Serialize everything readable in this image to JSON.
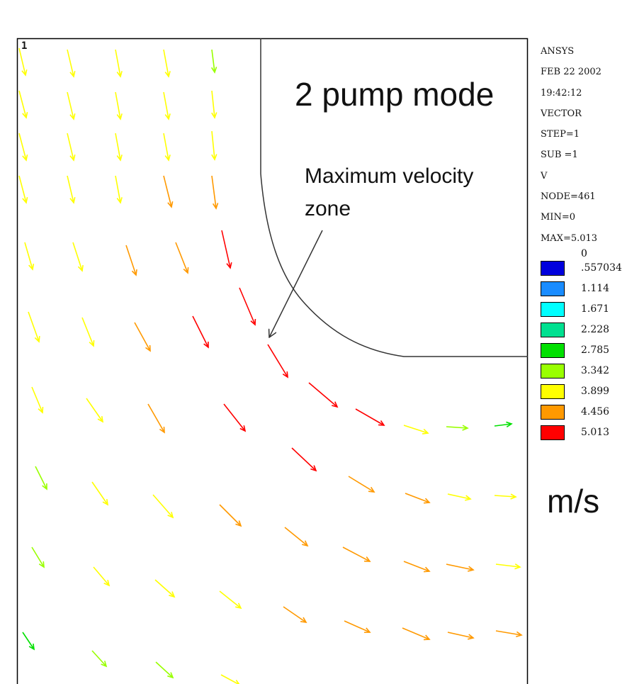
{
  "plot": {
    "window_number": "1",
    "title": "2 pump mode",
    "annotation_line1": "Maximum velocity",
    "annotation_line2": "zone",
    "unit": "m/s"
  },
  "info_lines": [
    "ANSYS",
    "FEB 22 2002",
    "19:42:12",
    "VECTOR",
    "STEP=1",
    "SUB =1",
    "V",
    "NODE=461",
    "MIN=0",
    "MAX=5.013"
  ],
  "legend": {
    "min_label": "0",
    "entries": [
      {
        "label": ".557034",
        "color": "#0000dd"
      },
      {
        "label": "1.114",
        "color": "#1a8cff"
      },
      {
        "label": "1.671",
        "color": "#00ffff"
      },
      {
        "label": "2.228",
        "color": "#00e090"
      },
      {
        "label": "2.785",
        "color": "#00e000"
      },
      {
        "label": "3.342",
        "color": "#99ff00"
      },
      {
        "label": "3.899",
        "color": "#ffff00"
      },
      {
        "label": "4.456",
        "color": "#ff9900"
      },
      {
        "label": "5.013",
        "color": "#ff0000"
      }
    ]
  },
  "colors": {
    "frame": "#000000",
    "boundary": "#333333",
    "pointer_arrow": "#333333"
  }
}
